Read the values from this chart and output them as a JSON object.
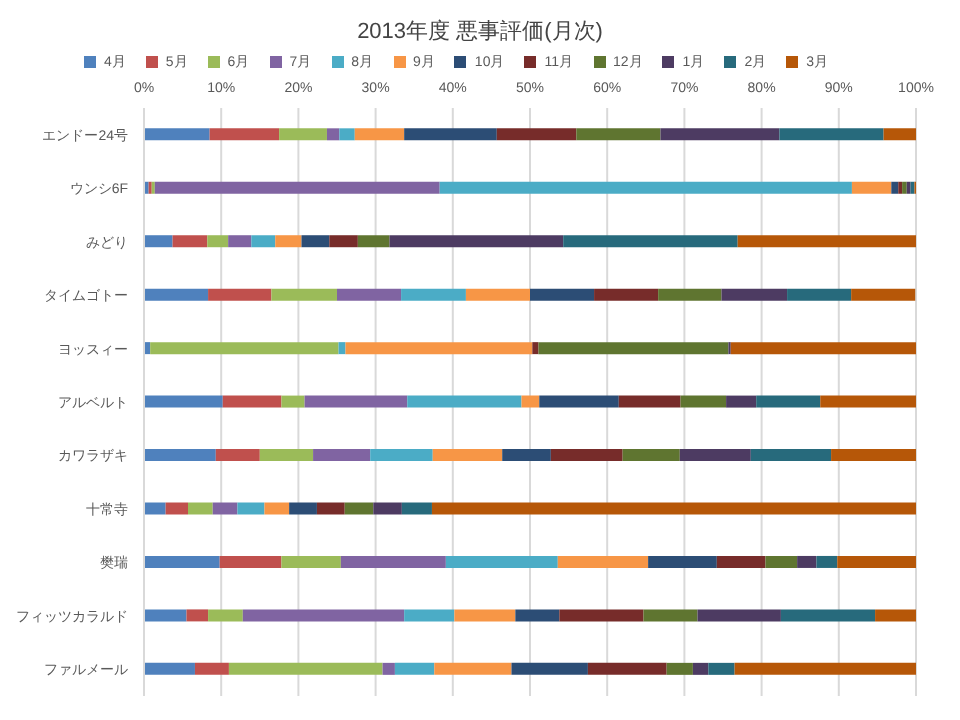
{
  "chart_data": {
    "type": "bar",
    "title": "2013年度 悪事評価(月次)",
    "orientation": "horizontal",
    "stacked": true,
    "legend": "top",
    "grid": "x",
    "categories": [
      "エンドー24号",
      "ウンシ6F",
      "みどり",
      "タイムゴトー",
      "ヨッスィー",
      "アルベルト",
      "カワラザキ",
      "十常寺",
      "樊瑞",
      "フィッツカラルド",
      "ファルメール"
    ],
    "xlim": [
      0,
      100
    ],
    "xticks": [
      {
        "value": 0,
        "label": "0%"
      },
      {
        "value": 10,
        "label": "10%"
      },
      {
        "value": 20,
        "label": "20%"
      },
      {
        "value": 30,
        "label": "30%"
      },
      {
        "value": 40,
        "label": "40%"
      },
      {
        "value": 50,
        "label": "50%"
      },
      {
        "value": 60,
        "label": "60%"
      },
      {
        "value": 70,
        "label": "70%"
      },
      {
        "value": 80,
        "label": "80%"
      },
      {
        "value": 90,
        "label": "90%"
      },
      {
        "value": 100,
        "label": "100%"
      }
    ],
    "series": [
      {
        "name": "4月",
        "color": "#4f81bd",
        "values": [
          8.5,
          0.6,
          3.7,
          8.3,
          0.8,
          10.2,
          9.3,
          2.8,
          9.8,
          5.5,
          6.6
        ]
      },
      {
        "name": "5月",
        "color": "#c0504d",
        "values": [
          9.0,
          0.4,
          4.5,
          8.2,
          0,
          7.6,
          5.7,
          2.9,
          8.0,
          2.8,
          4.4
        ]
      },
      {
        "name": "6月",
        "color": "#9bbb59",
        "values": [
          6.2,
          0.4,
          2.7,
          8.5,
          24.4,
          3.0,
          6.9,
          3.2,
          7.7,
          4.5,
          19.9
        ]
      },
      {
        "name": "7月",
        "color": "#8064a2",
        "values": [
          1.6,
          36.9,
          3.0,
          8.3,
          0,
          13.3,
          7.4,
          3.2,
          13.6,
          20.9,
          1.6
        ]
      },
      {
        "name": "8月",
        "color": "#4bacc6",
        "values": [
          2.0,
          53.4,
          3.1,
          8.4,
          0.9,
          14.8,
          8.1,
          3.5,
          14.5,
          6.5,
          5.1
        ]
      },
      {
        "name": "9月",
        "color": "#f79646",
        "values": [
          6.4,
          5.1,
          3.4,
          8.3,
          24.2,
          2.3,
          9.0,
          3.2,
          11.7,
          7.9,
          10.0
        ]
      },
      {
        "name": "10月",
        "color": "#2c4d75",
        "values": [
          12.0,
          0.9,
          3.6,
          8.3,
          0,
          10.3,
          6.3,
          3.6,
          8.9,
          5.7,
          9.9
        ]
      },
      {
        "name": "11月",
        "color": "#772c2a",
        "values": [
          10.3,
          0.5,
          3.7,
          8.3,
          0.8,
          8.0,
          9.3,
          3.6,
          6.3,
          10.9,
          10.2
        ]
      },
      {
        "name": "12月",
        "color": "#5f7530",
        "values": [
          10.9,
          0.6,
          4.1,
          8.2,
          24.6,
          5.9,
          7.4,
          3.7,
          4.1,
          7.0,
          3.4
        ]
      },
      {
        "name": "1月",
        "color": "#4d3b62",
        "values": [
          15.4,
          0.5,
          22.5,
          8.5,
          0.3,
          3.9,
          9.2,
          3.7,
          2.5,
          10.8,
          2.0
        ]
      },
      {
        "name": "2月",
        "color": "#276a7c",
        "values": [
          13.5,
          0.5,
          22.6,
          8.3,
          0,
          8.3,
          10.4,
          3.9,
          2.7,
          12.2,
          3.4
        ]
      },
      {
        "name": "3月",
        "color": "#b65708",
        "values": [
          4.2,
          0.2,
          23.1,
          8.3,
          24.0,
          12.4,
          11.0,
          62.7,
          10.2,
          5.3,
          23.5
        ]
      }
    ]
  }
}
